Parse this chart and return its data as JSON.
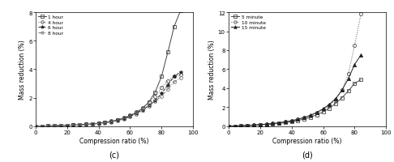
{
  "panel_c": {
    "label": "(c)",
    "xlabel": "Compression ratio (%)",
    "ylabel": "Mass reduction (%)",
    "ylim": [
      0,
      8
    ],
    "xlim": [
      0,
      100
    ],
    "yticks": [
      0,
      2,
      4,
      6,
      8
    ],
    "xticks": [
      0,
      20,
      40,
      60,
      80,
      100
    ],
    "series": [
      {
        "label": "1 hour",
        "linestyle": "-",
        "marker": "s",
        "markersize": 2.8,
        "color": "#444444",
        "fillstyle": "none",
        "x": [
          0,
          4,
          8,
          12,
          16,
          20,
          24,
          28,
          32,
          36,
          40,
          44,
          48,
          52,
          56,
          60,
          64,
          68,
          72,
          76,
          80,
          84,
          88,
          92
        ],
        "y": [
          0,
          0.01,
          0.02,
          0.03,
          0.04,
          0.06,
          0.08,
          0.1,
          0.13,
          0.16,
          0.2,
          0.25,
          0.32,
          0.42,
          0.55,
          0.72,
          0.95,
          1.25,
          1.7,
          2.4,
          3.5,
          5.2,
          7.0,
          8.1
        ]
      },
      {
        "label": "4 hour",
        "linestyle": ":",
        "marker": "o",
        "markersize": 3.0,
        "color": "#555555",
        "fillstyle": "none",
        "x": [
          0,
          4,
          8,
          12,
          16,
          20,
          24,
          28,
          32,
          36,
          40,
          44,
          48,
          52,
          56,
          60,
          64,
          68,
          72,
          76,
          80,
          84,
          88,
          92
        ],
        "y": [
          0,
          0.01,
          0.02,
          0.03,
          0.05,
          0.07,
          0.09,
          0.11,
          0.14,
          0.18,
          0.22,
          0.28,
          0.36,
          0.46,
          0.6,
          0.78,
          1.0,
          1.3,
          1.7,
          2.1,
          2.7,
          3.2,
          3.5,
          3.6
        ]
      },
      {
        "label": "6 hour",
        "linestyle": "--",
        "marker": "*",
        "markersize": 3.5,
        "color": "#222222",
        "fillstyle": "full",
        "x": [
          0,
          4,
          8,
          12,
          16,
          20,
          24,
          28,
          32,
          36,
          40,
          44,
          48,
          52,
          56,
          60,
          64,
          68,
          72,
          76,
          80,
          84,
          88,
          92
        ],
        "y": [
          0,
          0.01,
          0.02,
          0.03,
          0.04,
          0.06,
          0.08,
          0.1,
          0.13,
          0.16,
          0.2,
          0.25,
          0.32,
          0.42,
          0.55,
          0.7,
          0.9,
          1.15,
          1.45,
          1.8,
          2.3,
          2.9,
          3.5,
          3.8
        ]
      },
      {
        "label": "8 hour",
        "linestyle": "-.",
        "marker": "o",
        "markersize": 2.8,
        "color": "#777777",
        "fillstyle": "none",
        "x": [
          0,
          4,
          8,
          12,
          16,
          20,
          24,
          28,
          32,
          36,
          40,
          44,
          48,
          52,
          56,
          60,
          64,
          68,
          72,
          76,
          80,
          84,
          88,
          92
        ],
        "y": [
          0,
          0.01,
          0.02,
          0.03,
          0.04,
          0.055,
          0.07,
          0.09,
          0.12,
          0.15,
          0.18,
          0.23,
          0.3,
          0.38,
          0.5,
          0.65,
          0.85,
          1.1,
          1.4,
          1.75,
          2.1,
          2.6,
          3.1,
          3.4
        ]
      }
    ]
  },
  "panel_d": {
    "label": "(d)",
    "xlabel": "Compression ratio (%)",
    "ylabel": "Mass reduction (%)",
    "ylim": [
      0,
      12
    ],
    "xlim": [
      0,
      100
    ],
    "yticks": [
      0,
      2,
      4,
      6,
      8,
      10,
      12
    ],
    "xticks": [
      0,
      20,
      40,
      60,
      80,
      100
    ],
    "series": [
      {
        "label": "5 minute",
        "linestyle": "-",
        "marker": "s",
        "markersize": 2.8,
        "color": "#444444",
        "fillstyle": "none",
        "x": [
          0,
          4,
          8,
          12,
          16,
          20,
          24,
          28,
          32,
          36,
          40,
          44,
          48,
          52,
          56,
          60,
          64,
          68,
          72,
          76,
          80,
          84
        ],
        "y": [
          0,
          0.02,
          0.04,
          0.07,
          0.1,
          0.14,
          0.18,
          0.23,
          0.29,
          0.37,
          0.47,
          0.6,
          0.75,
          0.95,
          1.2,
          1.5,
          1.9,
          2.4,
          3.0,
          3.7,
          4.5,
          4.9
        ]
      },
      {
        "label": "10 minute",
        "linestyle": ":",
        "marker": "o",
        "markersize": 3.0,
        "color": "#555555",
        "fillstyle": "none",
        "x": [
          0,
          4,
          8,
          12,
          16,
          20,
          24,
          28,
          32,
          36,
          40,
          44,
          48,
          52,
          56,
          60,
          64,
          68,
          72,
          76,
          80,
          84
        ],
        "y": [
          0,
          0.02,
          0.05,
          0.08,
          0.12,
          0.17,
          0.22,
          0.28,
          0.36,
          0.46,
          0.58,
          0.72,
          0.9,
          1.12,
          1.4,
          1.75,
          2.2,
          2.8,
          3.8,
          5.5,
          8.5,
          11.8
        ]
      },
      {
        "label": "15 minute",
        "linestyle": "-",
        "marker": "^",
        "markersize": 3.0,
        "color": "#222222",
        "fillstyle": "full",
        "x": [
          0,
          4,
          8,
          12,
          16,
          20,
          24,
          28,
          32,
          36,
          40,
          44,
          48,
          52,
          56,
          60,
          64,
          68,
          72,
          76,
          80,
          84
        ],
        "y": [
          0,
          0.02,
          0.05,
          0.08,
          0.12,
          0.17,
          0.22,
          0.28,
          0.36,
          0.46,
          0.58,
          0.73,
          0.92,
          1.15,
          1.45,
          1.82,
          2.3,
          2.9,
          3.8,
          5.0,
          6.5,
          7.5
        ]
      }
    ]
  },
  "fig_width": 4.86,
  "fig_height": 2.01,
  "dpi": 100
}
